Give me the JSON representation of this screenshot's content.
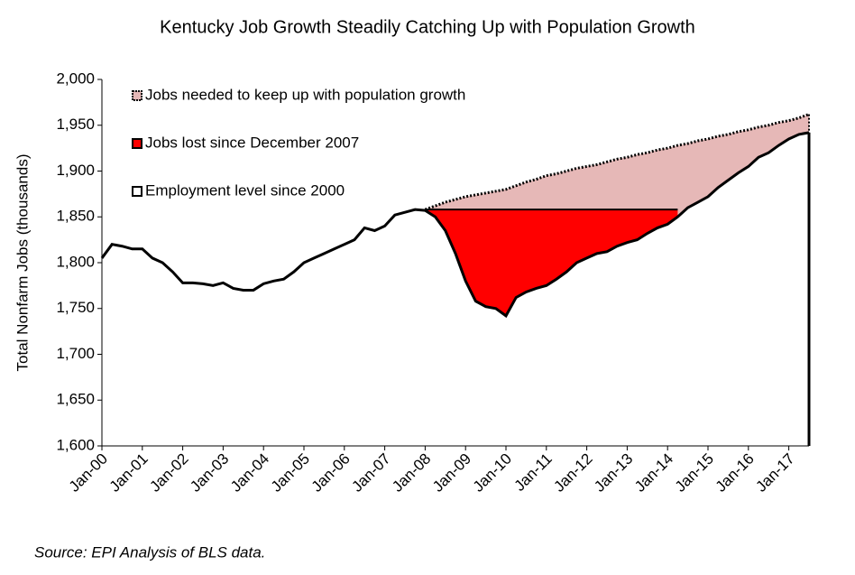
{
  "chart_data": {
    "type": "area",
    "title": "Kentucky Job Growth Steadily Catching Up with Population Growth",
    "y_label": "Total Nonfarm Jobs (thousands)",
    "source": "Source: EPI Analysis of BLS data.",
    "categories": [
      "Jan-00",
      null,
      null,
      null,
      "Jan-01",
      null,
      null,
      null,
      "Jan-02",
      null,
      null,
      null,
      "Jan-03",
      null,
      null,
      null,
      "Jan-04",
      null,
      null,
      null,
      "Jan-05",
      null,
      null,
      null,
      "Jan-06",
      null,
      null,
      null,
      "Jan-07",
      null,
      null,
      null,
      "Jan-08",
      null,
      null,
      null,
      "Jan-09",
      null,
      null,
      null,
      "Jan-10",
      null,
      null,
      null,
      "Jan-11",
      null,
      null,
      null,
      "Jan-12",
      null,
      null,
      null,
      "Jan-13",
      null,
      null,
      null,
      "Jan-14",
      null,
      null,
      null,
      "Jan-15",
      null,
      null,
      null,
      "Jan-16",
      null,
      null,
      null,
      "Jan-17",
      null,
      null
    ],
    "series": [
      {
        "name": "Jobs needed to keep up with population growth",
        "color": "#e6b8b7",
        "values": [
          null,
          null,
          null,
          null,
          null,
          null,
          null,
          null,
          null,
          null,
          null,
          null,
          null,
          null,
          null,
          null,
          null,
          null,
          null,
          null,
          null,
          null,
          null,
          null,
          null,
          null,
          null,
          null,
          null,
          null,
          null,
          null,
          1858,
          1862,
          1866,
          1869,
          1872,
          1874,
          1876,
          1878,
          1880,
          1884,
          1888,
          1891,
          1895,
          1897,
          1900,
          1903,
          1905,
          1907,
          1910,
          1913,
          1915,
          1918,
          1920,
          1923,
          1925,
          1928,
          1930,
          1933,
          1935,
          1938,
          1940,
          1943,
          1945,
          1948,
          1950,
          1953,
          1955,
          1958,
          1962
        ]
      },
      {
        "name": "Jobs lost since December 2007",
        "color": "#ff0000",
        "values": [
          null,
          null,
          null,
          null,
          null,
          null,
          null,
          null,
          null,
          null,
          null,
          null,
          null,
          null,
          null,
          null,
          null,
          null,
          null,
          null,
          null,
          null,
          null,
          null,
          null,
          null,
          null,
          null,
          null,
          null,
          null,
          null,
          1858,
          1858,
          1858,
          1858,
          1858,
          1858,
          1858,
          1858,
          1858,
          1858,
          1858,
          1858,
          1858,
          1858,
          1858,
          1858,
          1858,
          1858,
          1858,
          1858,
          1858,
          1858,
          1858,
          1858,
          1858,
          1858,
          null,
          null,
          null,
          null,
          null,
          null,
          null,
          null,
          null,
          null,
          null,
          null,
          null
        ]
      },
      {
        "name": "Employment level since 2000",
        "color": "#ffffff",
        "values": [
          1805,
          1820,
          1818,
          1815,
          1815,
          1805,
          1800,
          1790,
          1778,
          1778,
          1777,
          1775,
          1778,
          1772,
          1770,
          1770,
          1777,
          1780,
          1782,
          1790,
          1800,
          1805,
          1810,
          1815,
          1820,
          1825,
          1838,
          1835,
          1840,
          1852,
          1855,
          1858,
          1857,
          1850,
          1835,
          1810,
          1780,
          1758,
          1752,
          1750,
          1742,
          1762,
          1768,
          1772,
          1775,
          1782,
          1790,
          1800,
          1805,
          1810,
          1812,
          1818,
          1822,
          1825,
          1832,
          1838,
          1842,
          1850,
          1860,
          1866,
          1872,
          1882,
          1890,
          1898,
          1905,
          1915,
          1920,
          1928,
          1935,
          1940,
          1942
        ]
      }
    ],
    "ylim": [
      1600,
      2000
    ],
    "yticks": [
      {
        "value": 1600,
        "label": "1,600"
      },
      {
        "value": 1650,
        "label": "1,650"
      },
      {
        "value": 1700,
        "label": "1,700"
      },
      {
        "value": 1750,
        "label": "1,750"
      },
      {
        "value": 1800,
        "label": "1,800"
      },
      {
        "value": 1850,
        "label": "1,850"
      },
      {
        "value": 1900,
        "label": "1,900"
      },
      {
        "value": 1950,
        "label": "1,950"
      },
      {
        "value": 2000,
        "label": "2,000"
      }
    ],
    "legend": "upper left"
  }
}
